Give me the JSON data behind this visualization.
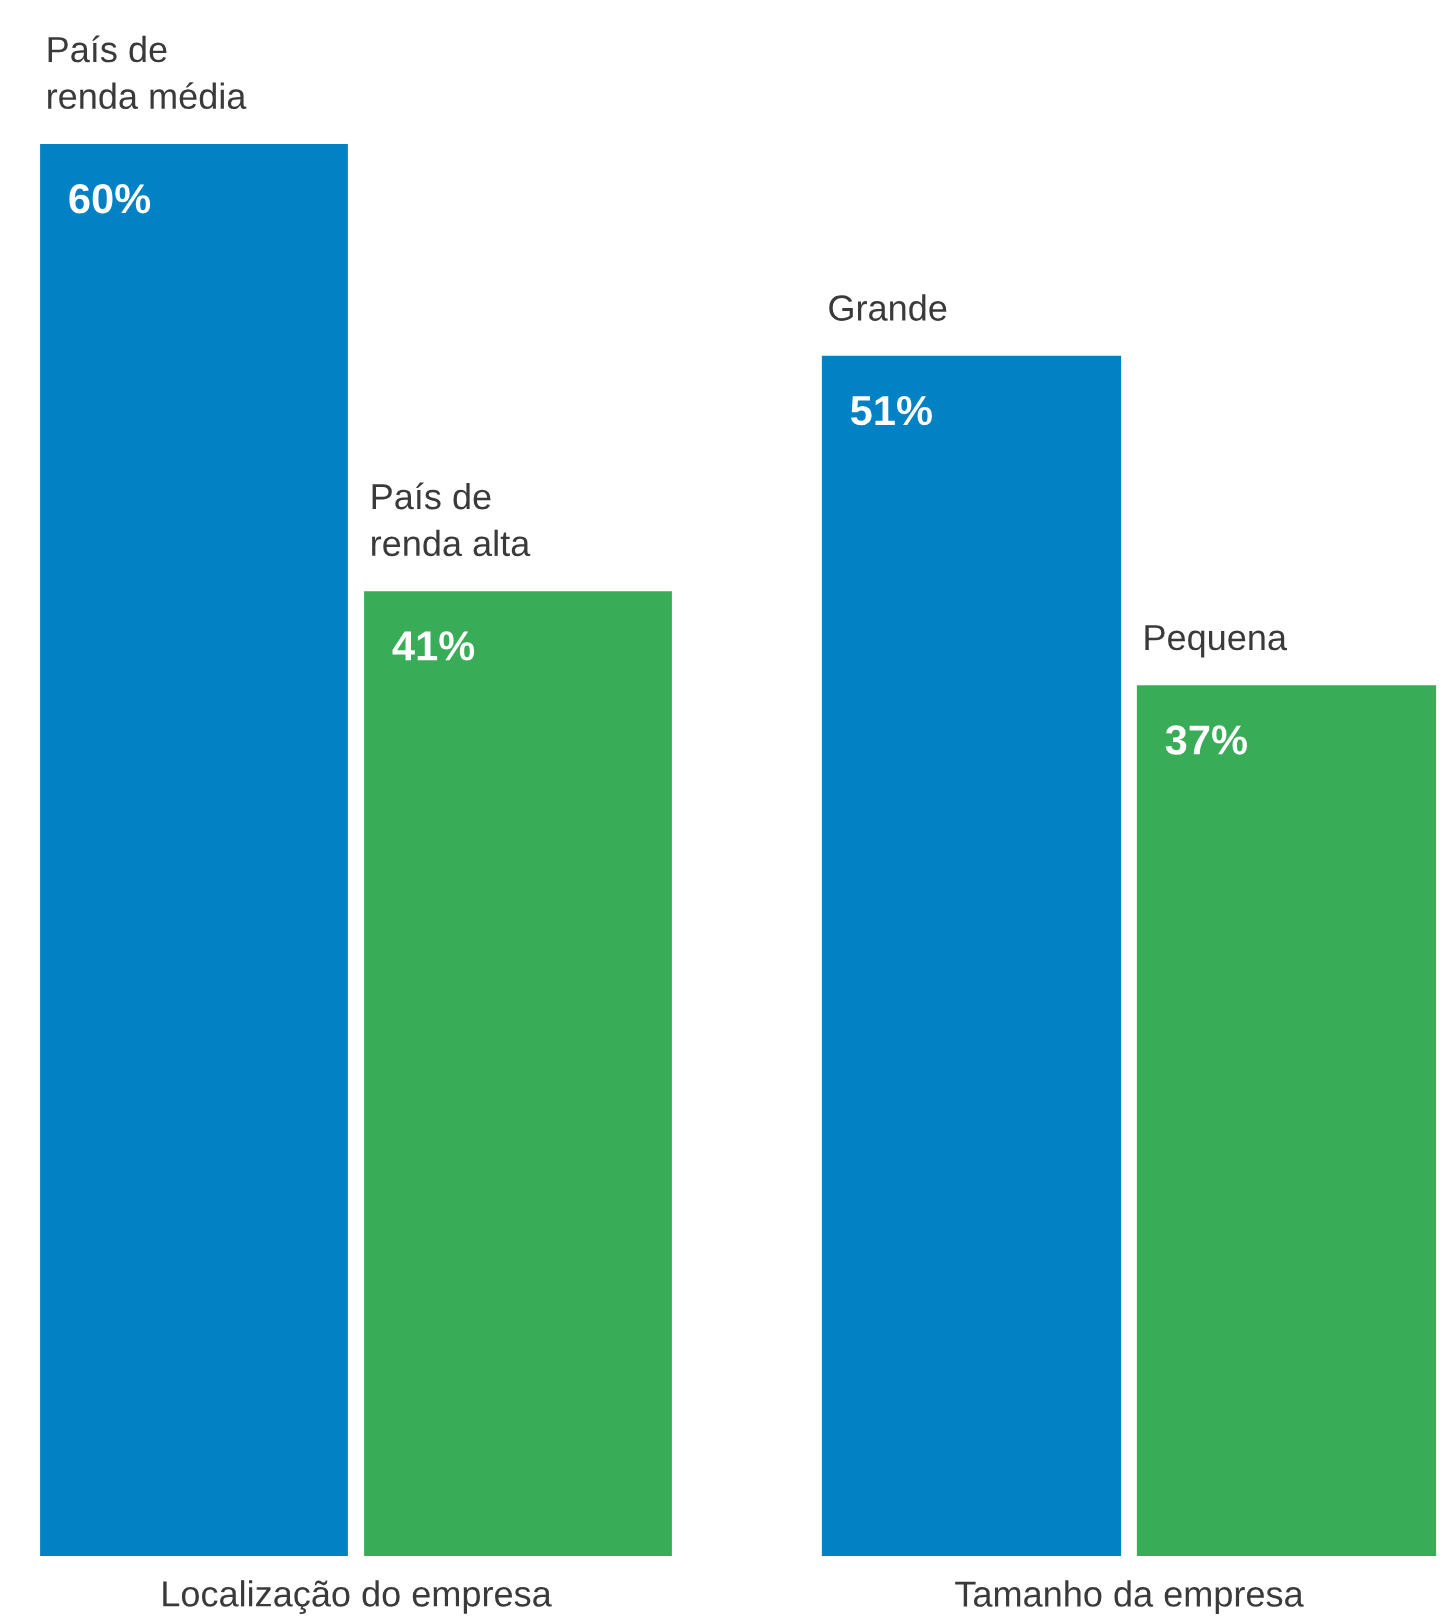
{
  "chart_data": [
    {
      "type": "bar",
      "xlabel": "Localização do empresa",
      "categories": [
        "País de\nrenda média",
        "País de\nrenda alta"
      ],
      "values": [
        60,
        41
      ],
      "colors": [
        "#0281c4",
        "#38ac57"
      ],
      "value_labels": [
        "60%",
        "41%"
      ]
    },
    {
      "type": "bar",
      "xlabel": "Tamanho da empresa",
      "categories": [
        "Grande",
        "Pequena"
      ],
      "values": [
        51,
        37
      ],
      "colors": [
        "#0281c4",
        "#38ac57"
      ],
      "value_labels": [
        "51%",
        "37%"
      ]
    }
  ]
}
